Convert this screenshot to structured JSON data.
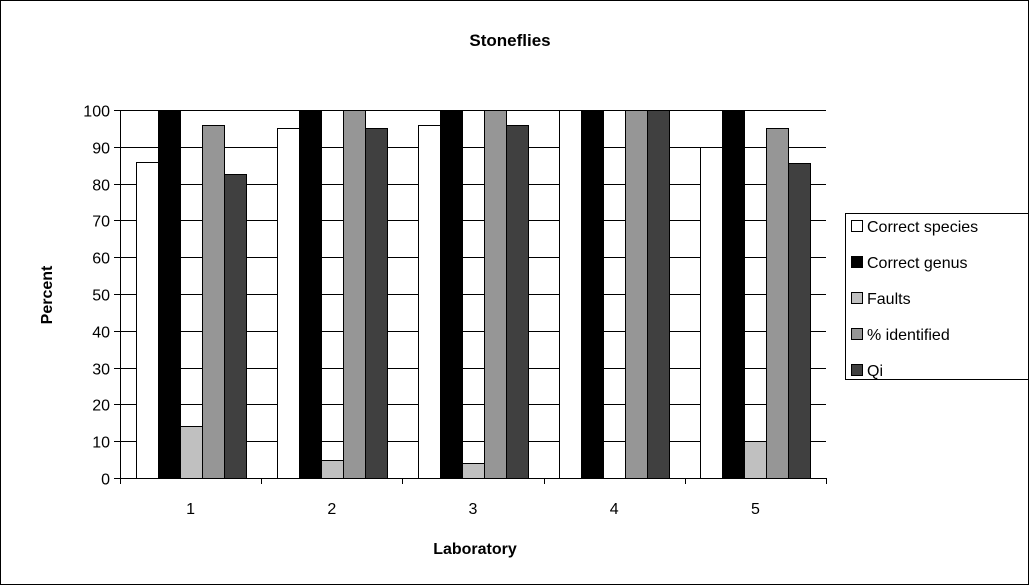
{
  "chart_data": {
    "type": "bar",
    "title": "Stoneflies",
    "xlabel": "Laboratory",
    "ylabel": "Percent",
    "categories": [
      "1",
      "2",
      "3",
      "4",
      "5"
    ],
    "ylim": [
      0,
      100
    ],
    "yticks": [
      0,
      10,
      20,
      30,
      40,
      50,
      60,
      70,
      80,
      90,
      100
    ],
    "grid": true,
    "legend_position": "right",
    "series": [
      {
        "name": "Correct species",
        "color": "#ffffff",
        "values": [
          86,
          95,
          96,
          100,
          90
        ]
      },
      {
        "name": "Correct genus",
        "color": "#000000",
        "values": [
          100,
          100,
          100,
          100,
          100
        ]
      },
      {
        "name": "Faults",
        "color": "#c0c0c0",
        "values": [
          14,
          5,
          4,
          0,
          10
        ]
      },
      {
        "name": "% identified",
        "color": "#969696",
        "values": [
          96,
          100,
          100,
          100,
          95
        ]
      },
      {
        "name": "Qi",
        "color": "#404040",
        "values": [
          82.5,
          95,
          96,
          100,
          85.5
        ]
      }
    ]
  }
}
